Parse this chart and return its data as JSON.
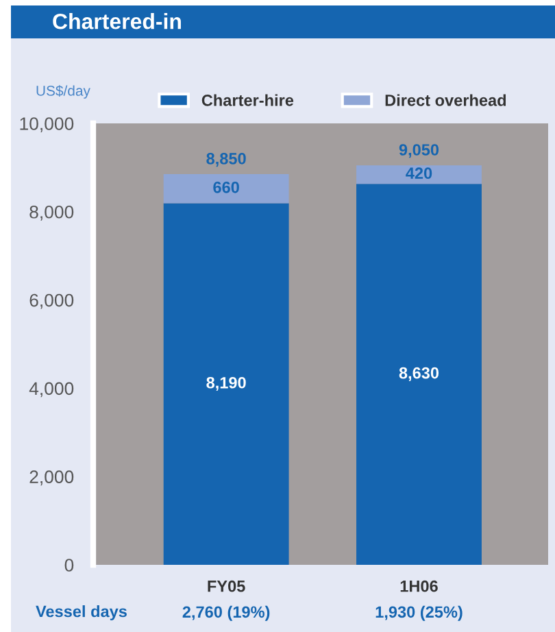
{
  "chart_data": {
    "type": "bar",
    "title": "Chartered-in",
    "ylabel": "US$/day",
    "categories": [
      "FY05",
      "1H06"
    ],
    "series": [
      {
        "name": "Charter-hire",
        "color": "#1565b0",
        "values": [
          8190,
          8630
        ],
        "value_labels": [
          "8,190",
          "8,630"
        ]
      },
      {
        "name": "Direct overhead",
        "color": "#8fa6d6",
        "values": [
          660,
          420
        ],
        "value_labels": [
          "660",
          "420"
        ]
      }
    ],
    "stacked": true,
    "totals": [
      "8,850",
      "9,050"
    ],
    "ylim": [
      0,
      10000
    ],
    "yticks": [
      0,
      {
        "value": 2000,
        "label": "2,000"
      },
      {
        "value": 4000,
        "label": "4,000"
      },
      {
        "value": 6000,
        "label": "6,000"
      },
      {
        "value": 8000,
        "label": "8,000"
      },
      {
        "value": 10000,
        "label": "10,000"
      }
    ],
    "grid": false,
    "legend": "top",
    "annotations": [
      "Vessel days",
      "2,760 (19%)",
      "1,930 (25%)"
    ]
  }
}
